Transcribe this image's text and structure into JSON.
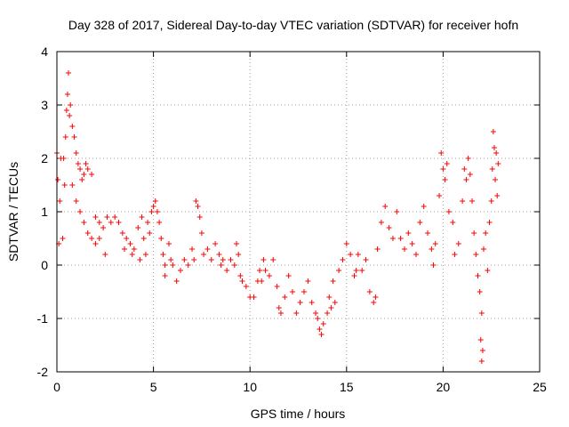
{
  "chart_data": {
    "type": "scatter",
    "title": "Day 328 of 2017, Sidereal Day-to-day VTEC variation (SDTVAR) for receiver hofn",
    "xlabel": "GPS time / hours",
    "ylabel": "SDTVAR / TECUs",
    "xlim": [
      0,
      25
    ],
    "ylim": [
      -2,
      4
    ],
    "x_ticks": [
      0,
      5,
      10,
      15,
      20,
      25
    ],
    "y_ticks": [
      -2,
      -1,
      0,
      1,
      2,
      3,
      4
    ],
    "grid": true,
    "marker": "plus",
    "marker_color": "#ff0000",
    "series": [
      {
        "name": "SDTVAR",
        "points": [
          [
            0.0,
            2.1
          ],
          [
            0.05,
            1.6
          ],
          [
            0.1,
            0.4
          ],
          [
            0.15,
            1.2
          ],
          [
            0.2,
            2.0
          ],
          [
            0.3,
            0.5
          ],
          [
            0.35,
            2.0
          ],
          [
            0.4,
            1.5
          ],
          [
            0.45,
            2.4
          ],
          [
            0.5,
            2.9
          ],
          [
            0.55,
            3.2
          ],
          [
            0.6,
            3.6
          ],
          [
            0.65,
            2.8
          ],
          [
            0.7,
            3.0
          ],
          [
            0.8,
            2.6
          ],
          [
            0.9,
            2.4
          ],
          [
            1.0,
            2.1
          ],
          [
            1.1,
            1.9
          ],
          [
            1.2,
            1.8
          ],
          [
            1.3,
            1.6
          ],
          [
            1.4,
            1.7
          ],
          [
            1.5,
            1.9
          ],
          [
            1.6,
            1.8
          ],
          [
            1.8,
            1.7
          ],
          [
            0.8,
            1.5
          ],
          [
            1.0,
            1.2
          ],
          [
            1.2,
            1.0
          ],
          [
            1.4,
            0.8
          ],
          [
            1.6,
            0.6
          ],
          [
            1.8,
            0.5
          ],
          [
            2.0,
            0.4
          ],
          [
            2.2,
            0.5
          ],
          [
            2.0,
            0.9
          ],
          [
            2.2,
            0.8
          ],
          [
            2.4,
            0.7
          ],
          [
            2.5,
            0.2
          ],
          [
            2.6,
            0.9
          ],
          [
            2.8,
            0.8
          ],
          [
            3.0,
            0.9
          ],
          [
            3.2,
            0.8
          ],
          [
            3.4,
            0.6
          ],
          [
            3.5,
            0.3
          ],
          [
            3.6,
            0.5
          ],
          [
            3.8,
            0.4
          ],
          [
            3.9,
            0.2
          ],
          [
            4.0,
            0.3
          ],
          [
            4.2,
            0.7
          ],
          [
            4.3,
            0.1
          ],
          [
            4.4,
            0.9
          ],
          [
            4.5,
            0.5
          ],
          [
            4.6,
            0.2
          ],
          [
            4.7,
            0.8
          ],
          [
            4.8,
            0.6
          ],
          [
            4.9,
            1.0
          ],
          [
            5.0,
            1.1
          ],
          [
            5.1,
            1.2
          ],
          [
            5.2,
            1.0
          ],
          [
            5.3,
            0.8
          ],
          [
            5.4,
            0.5
          ],
          [
            5.5,
            0.2
          ],
          [
            5.6,
            0.0
          ],
          [
            5.8,
            0.4
          ],
          [
            5.9,
            0.1
          ],
          [
            6.0,
            0.0
          ],
          [
            5.6,
            -0.2
          ],
          [
            6.2,
            -0.3
          ],
          [
            6.4,
            -0.1
          ],
          [
            6.6,
            0.1
          ],
          [
            6.8,
            0.0
          ],
          [
            7.0,
            0.3
          ],
          [
            7.1,
            0.1
          ],
          [
            7.2,
            1.2
          ],
          [
            7.3,
            1.1
          ],
          [
            7.4,
            0.9
          ],
          [
            7.5,
            0.6
          ],
          [
            7.6,
            0.2
          ],
          [
            7.8,
            0.3
          ],
          [
            8.0,
            0.1
          ],
          [
            8.2,
            0.4
          ],
          [
            8.4,
            0.2
          ],
          [
            8.5,
            0.0
          ],
          [
            8.6,
            0.1
          ],
          [
            8.8,
            -0.1
          ],
          [
            9.0,
            0.1
          ],
          [
            9.2,
            0.0
          ],
          [
            9.3,
            0.4
          ],
          [
            9.4,
            0.2
          ],
          [
            9.5,
            -0.2
          ],
          [
            9.6,
            -0.3
          ],
          [
            9.8,
            -0.4
          ],
          [
            10.0,
            -0.6
          ],
          [
            10.2,
            -0.6
          ],
          [
            10.4,
            -0.3
          ],
          [
            10.5,
            -0.1
          ],
          [
            10.6,
            -0.3
          ],
          [
            10.7,
            0.1
          ],
          [
            10.8,
            -0.1
          ],
          [
            11.0,
            -0.2
          ],
          [
            11.2,
            0.1
          ],
          [
            11.4,
            -0.4
          ],
          [
            11.5,
            -0.8
          ],
          [
            11.6,
            -0.9
          ],
          [
            11.8,
            -0.6
          ],
          [
            12.0,
            -0.2
          ],
          [
            12.2,
            -0.5
          ],
          [
            12.4,
            -0.9
          ],
          [
            12.6,
            -0.7
          ],
          [
            12.8,
            -0.5
          ],
          [
            13.0,
            -0.3
          ],
          [
            13.2,
            -0.7
          ],
          [
            13.4,
            -0.9
          ],
          [
            13.5,
            -1.0
          ],
          [
            13.6,
            -1.2
          ],
          [
            13.7,
            -1.3
          ],
          [
            13.8,
            -1.1
          ],
          [
            14.0,
            -0.9
          ],
          [
            14.1,
            -0.6
          ],
          [
            14.2,
            -0.8
          ],
          [
            14.3,
            -0.3
          ],
          [
            14.4,
            -0.7
          ],
          [
            14.6,
            -0.1
          ],
          [
            14.8,
            0.1
          ],
          [
            15.0,
            0.4
          ],
          [
            15.2,
            0.2
          ],
          [
            15.4,
            -0.2
          ],
          [
            15.5,
            -0.1
          ],
          [
            15.6,
            0.2
          ],
          [
            15.8,
            -0.1
          ],
          [
            16.0,
            0.1
          ],
          [
            16.2,
            -0.5
          ],
          [
            16.4,
            -0.7
          ],
          [
            16.5,
            -0.6
          ],
          [
            16.6,
            0.3
          ],
          [
            16.8,
            0.8
          ],
          [
            17.0,
            1.1
          ],
          [
            17.2,
            0.7
          ],
          [
            17.4,
            0.5
          ],
          [
            17.6,
            1.0
          ],
          [
            17.8,
            0.5
          ],
          [
            18.0,
            0.3
          ],
          [
            18.2,
            0.6
          ],
          [
            18.4,
            0.4
          ],
          [
            18.6,
            0.2
          ],
          [
            18.8,
            0.8
          ],
          [
            19.0,
            1.1
          ],
          [
            19.2,
            0.6
          ],
          [
            19.4,
            0.3
          ],
          [
            19.5,
            0.0
          ],
          [
            19.6,
            0.4
          ],
          [
            19.8,
            1.3
          ],
          [
            20.0,
            1.8
          ],
          [
            20.2,
            1.9
          ],
          [
            19.9,
            2.1
          ],
          [
            20.1,
            1.6
          ],
          [
            20.3,
            1.0
          ],
          [
            20.5,
            0.8
          ],
          [
            20.6,
            0.2
          ],
          [
            20.8,
            0.4
          ],
          [
            21.0,
            1.2
          ],
          [
            21.1,
            1.8
          ],
          [
            21.2,
            1.6
          ],
          [
            21.3,
            2.0
          ],
          [
            21.4,
            1.7
          ],
          [
            21.5,
            1.2
          ],
          [
            21.6,
            0.6
          ],
          [
            21.7,
            0.2
          ],
          [
            21.8,
            -0.2
          ],
          [
            21.9,
            -0.5
          ],
          [
            22.0,
            -0.9
          ],
          [
            21.95,
            -1.4
          ],
          [
            22.0,
            -1.8
          ],
          [
            22.05,
            -1.6
          ],
          [
            22.1,
            0.3
          ],
          [
            22.2,
            0.6
          ],
          [
            22.3,
            -0.1
          ],
          [
            22.4,
            0.8
          ],
          [
            22.5,
            1.2
          ],
          [
            22.55,
            1.8
          ],
          [
            22.6,
            2.5
          ],
          [
            22.65,
            2.2
          ],
          [
            22.7,
            1.6
          ],
          [
            22.75,
            2.1
          ],
          [
            22.8,
            1.3
          ],
          [
            22.85,
            1.9
          ]
        ]
      }
    ]
  }
}
